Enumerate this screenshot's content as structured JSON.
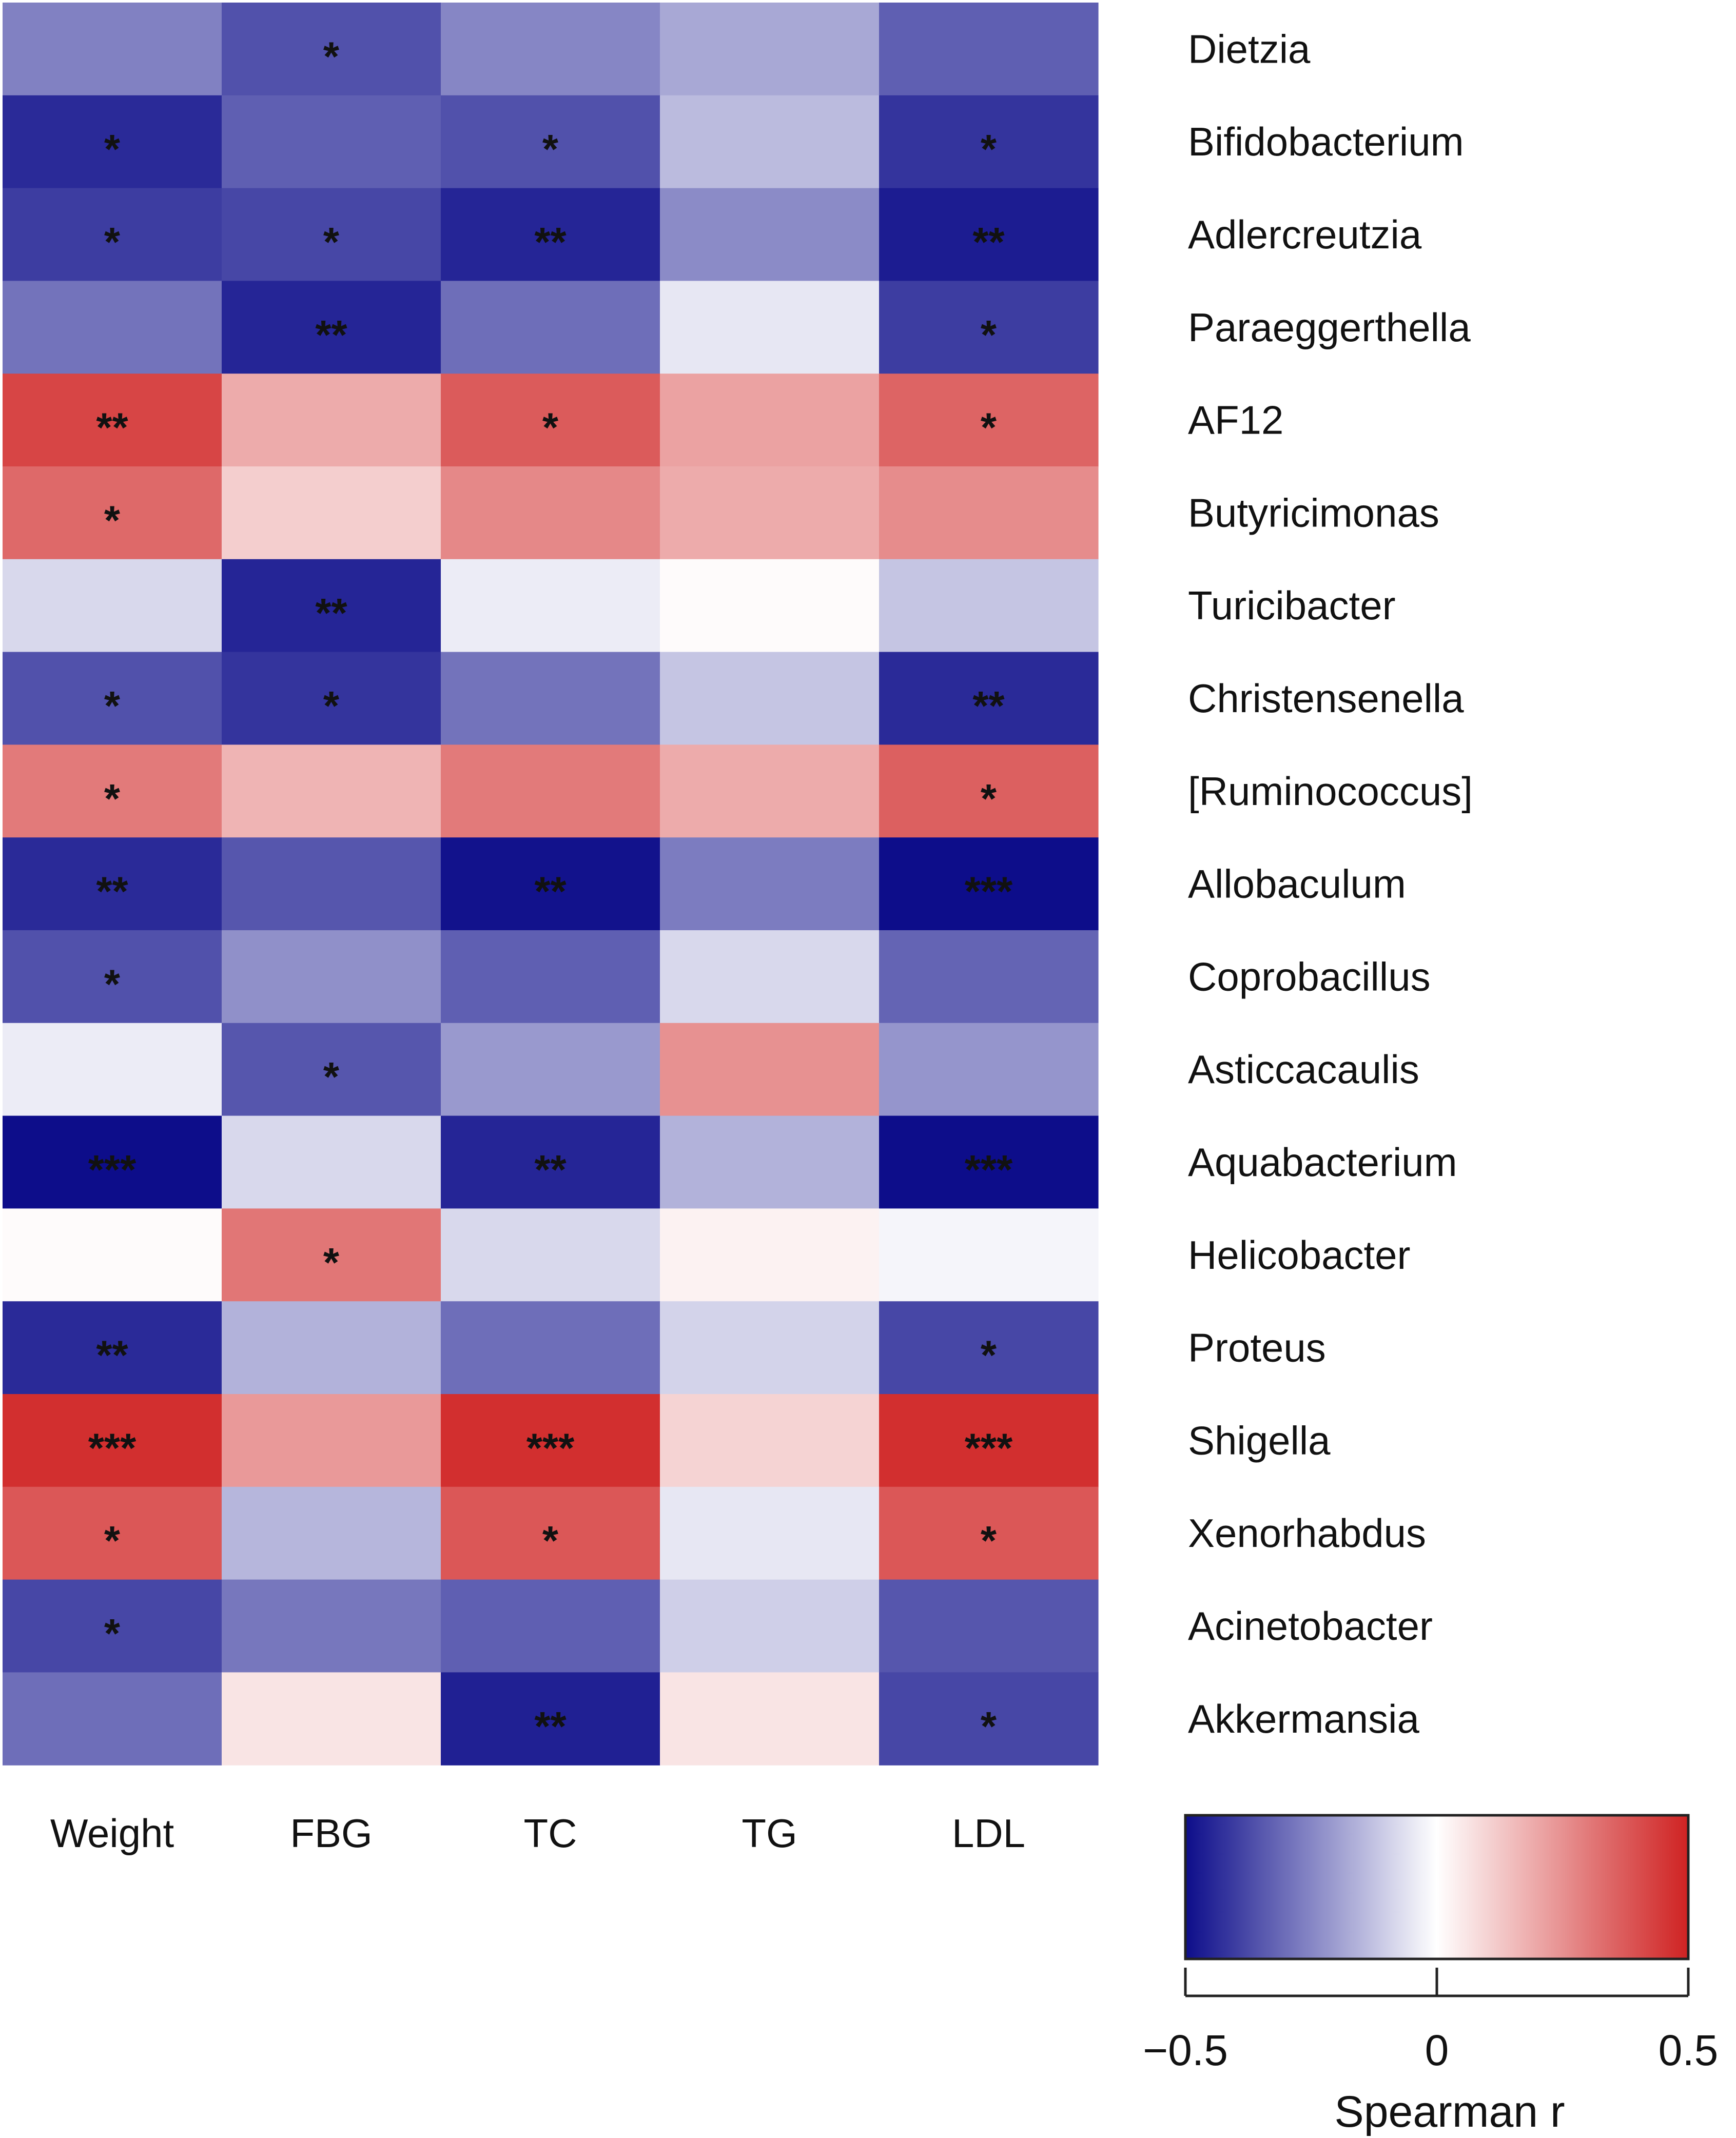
{
  "chart_data": {
    "type": "heatmap",
    "title": "",
    "columns": [
      "Weight",
      "FBG",
      "TC",
      "TG",
      "LDL"
    ],
    "rows": [
      "Dietzia",
      "Bifidobacterium",
      "Adlercreutzia",
      "Paraeggerthella",
      "AF12",
      "Butyricimonas",
      "Turicibacter",
      "Christensenella",
      "[Ruminococcus]",
      "Allobaculum",
      "Coprobacillus",
      "Asticcacaulis",
      "Aquabacterium",
      "Helicobacter",
      "Proteus",
      "Shigella",
      "Xenorhabdus",
      "Acinetobacter",
      "Akkermansia"
    ],
    "values": [
      [
        -0.26,
        -0.36,
        -0.25,
        -0.18,
        -0.33
      ],
      [
        -0.44,
        -0.33,
        -0.36,
        -0.14,
        -0.42
      ],
      [
        -0.4,
        -0.38,
        -0.45,
        -0.24,
        -0.47
      ],
      [
        -0.29,
        -0.45,
        -0.3,
        -0.05,
        -0.4
      ],
      [
        0.42,
        0.19,
        0.37,
        0.21,
        0.35
      ],
      [
        0.34,
        0.11,
        0.27,
        0.19,
        0.26
      ],
      [
        -0.08,
        -0.45,
        -0.04,
        0.01,
        -0.12
      ],
      [
        -0.36,
        -0.42,
        -0.29,
        -0.12,
        -0.44
      ],
      [
        0.3,
        0.17,
        0.3,
        0.19,
        0.36
      ],
      [
        -0.44,
        -0.35,
        -0.49,
        -0.27,
        -0.5
      ],
      [
        -0.36,
        -0.23,
        -0.33,
        -0.08,
        -0.32
      ],
      [
        -0.04,
        -0.35,
        -0.21,
        0.25,
        -0.22
      ],
      [
        -0.5,
        -0.08,
        -0.45,
        -0.16,
        -0.5
      ],
      [
        0.01,
        0.31,
        -0.08,
        0.03,
        -0.02
      ],
      [
        -0.44,
        -0.16,
        -0.3,
        -0.09,
        -0.38
      ],
      [
        0.47,
        0.23,
        0.47,
        0.1,
        0.47
      ],
      [
        0.38,
        -0.15,
        0.38,
        -0.05,
        0.38
      ],
      [
        -0.38,
        -0.28,
        -0.33,
        -0.1,
        -0.35
      ],
      [
        -0.3,
        0.06,
        -0.46,
        0.06,
        -0.38
      ]
    ],
    "significance": [
      [
        "",
        "*",
        "",
        "",
        ""
      ],
      [
        "*",
        "",
        "*",
        "",
        "*"
      ],
      [
        "*",
        "*",
        "**",
        "",
        "**"
      ],
      [
        "",
        "**",
        "",
        "",
        "*"
      ],
      [
        "**",
        "",
        "*",
        "",
        "*"
      ],
      [
        "*",
        "",
        "",
        "",
        ""
      ],
      [
        "",
        "**",
        "",
        "",
        ""
      ],
      [
        "*",
        "*",
        "",
        "",
        "**"
      ],
      [
        "*",
        "",
        "",
        "",
        "*"
      ],
      [
        "**",
        "",
        "**",
        "",
        "***"
      ],
      [
        "*",
        "",
        "",
        "",
        ""
      ],
      [
        "",
        "*",
        "",
        "",
        ""
      ],
      [
        "***",
        "",
        "**",
        "",
        "***"
      ],
      [
        "",
        "*",
        "",
        "",
        ""
      ],
      [
        "**",
        "",
        "",
        "",
        "*"
      ],
      [
        "***",
        "",
        "***",
        "",
        "***"
      ],
      [
        "*",
        "",
        "*",
        "",
        "*"
      ],
      [
        "*",
        "",
        "",
        "",
        ""
      ],
      [
        "",
        "",
        "**",
        "",
        "*"
      ]
    ],
    "color_scale": {
      "min": -0.5,
      "mid": 0,
      "max": 0.5,
      "low_color": "#0d0d8a",
      "mid_color": "#ffffff",
      "high_color": "#cf2222"
    },
    "legend": {
      "title": "Spearman r",
      "ticks": [
        -0.5,
        0,
        0.5
      ],
      "tick_labels": [
        "−0.5",
        "0",
        "0.5"
      ],
      "placement": "bottom-right"
    },
    "xlabel": "",
    "ylabel": ""
  }
}
